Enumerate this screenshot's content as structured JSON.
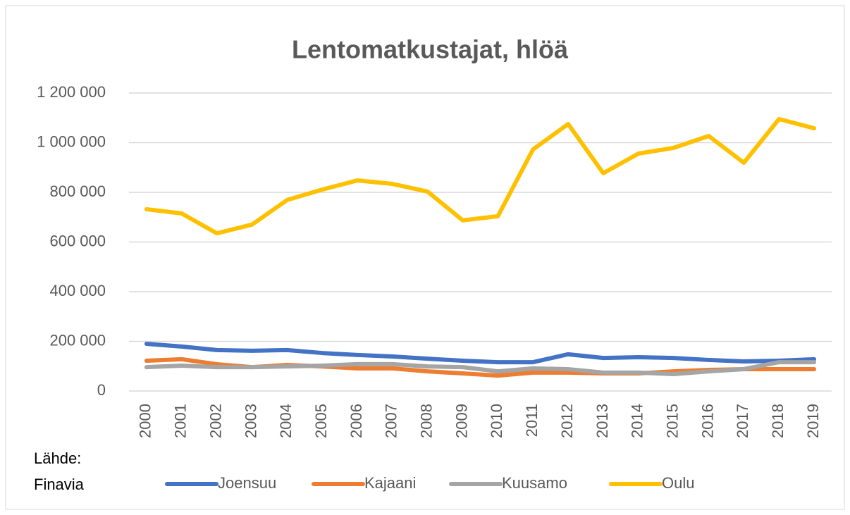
{
  "chart_data": {
    "type": "line",
    "title": "Lentomatkustajat, hlöä",
    "source": [
      "Lähde:",
      "Finavia"
    ],
    "categories": [
      "2000",
      "2001",
      "2002",
      "2003",
      "2004",
      "2005",
      "2006",
      "2007",
      "2008",
      "2009",
      "2010",
      "2011",
      "2012",
      "2013",
      "2014",
      "2015",
      "2016",
      "2017",
      "2018",
      "2019"
    ],
    "series": [
      {
        "name": "Joensuu",
        "color": "#4472c4",
        "values": [
          190000,
          179000,
          165000,
          162000,
          165000,
          153000,
          145000,
          139000,
          130000,
          122000,
          116000,
          116000,
          148000,
          133000,
          136000,
          133000,
          125000,
          119000,
          122000,
          128000
        ]
      },
      {
        "name": "Kajaani",
        "color": "#ed7d31",
        "values": [
          122000,
          128000,
          108000,
          96000,
          105000,
          99000,
          91000,
          91000,
          79000,
          71000,
          62000,
          74000,
          74000,
          71000,
          71000,
          79000,
          85000,
          88000,
          88000,
          88000
        ]
      },
      {
        "name": "Kuusamo",
        "color": "#a5a5a5",
        "values": [
          96000,
          102000,
          96000,
          96000,
          99000,
          102000,
          108000,
          108000,
          99000,
          96000,
          79000,
          91000,
          88000,
          74000,
          74000,
          68000,
          79000,
          88000,
          116000,
          116000
        ]
      },
      {
        "name": "Oulu",
        "color": "#ffc000",
        "values": [
          732000,
          715000,
          635000,
          670000,
          769000,
          811000,
          848000,
          834000,
          803000,
          687000,
          704000,
          973000,
          1075000,
          877000,
          956000,
          979000,
          1027000,
          919000,
          1095000,
          1058000
        ]
      }
    ],
    "ylim": [
      0,
      1200000
    ],
    "yticks": [
      0,
      {
        "value": 200000,
        "label": "200 000"
      },
      {
        "value": 400000,
        "label": "400 000"
      },
      {
        "value": 600000,
        "label": "600 000"
      },
      {
        "value": 800000,
        "label": "800 000"
      },
      {
        "value": 1000000,
        "label": "1 000 000"
      },
      {
        "value": 1200000,
        "label": "1 200 000"
      }
    ],
    "grid": true,
    "legend": "bottom"
  }
}
